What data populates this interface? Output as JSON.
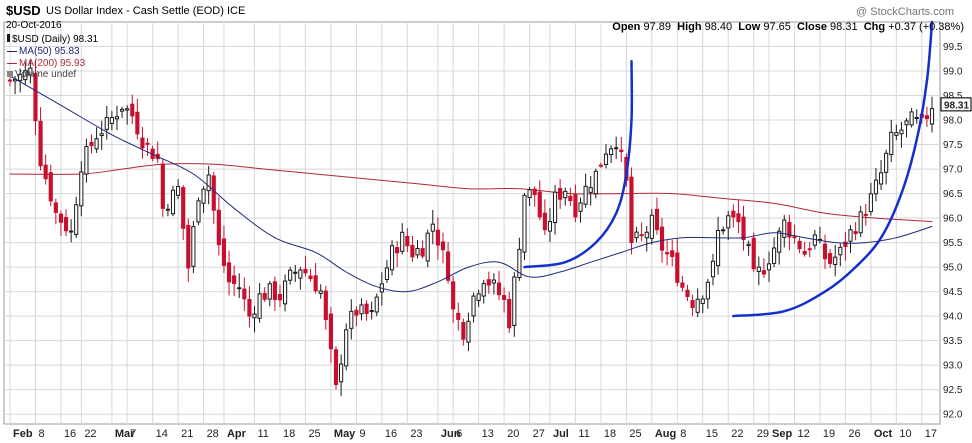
{
  "header": {
    "symbol": "$USD",
    "name": "US Dollar Index - Cash Settle (EOD)",
    "exchange": "ICE",
    "date": "20-Oct-2016",
    "watermark": "@ StockCharts.com",
    "open_label": "Open",
    "open_value": "97.89",
    "high_label": "High",
    "high_value": "98.40",
    "low_label": "Low",
    "low_value": "97.65",
    "close_label": "Close",
    "close_value": "98.31",
    "chg_label": "Chg",
    "chg_value": "+0.37 (+0.38%)"
  },
  "legend": {
    "price": "$USD (Daily) 98.31",
    "ma50": "MA(50) 95.83",
    "ma200": "MA(200) 95.93",
    "volume": "Volume undef"
  },
  "colors": {
    "up": "#1a1a1a",
    "down": "#c8102e",
    "ma50": "#1f2a7a",
    "ma200": "#b0283a",
    "annotation": "#1530c8",
    "grid": "#d8d8d8",
    "last_price_box": "#1a1a1a"
  },
  "chart_data": {
    "type": "candlestick",
    "title": "$USD US Dollar Index - Cash Settle (EOD) ICE",
    "ylim": [
      91.8,
      100.0
    ],
    "y_ticks": [
      "92.0",
      "92.5",
      "93.0",
      "93.5",
      "94.0",
      "94.5",
      "95.0",
      "95.5",
      "96.0",
      "96.5",
      "97.0",
      "97.5",
      "98.0",
      "98.5",
      "99.0",
      "99.5"
    ],
    "x_ticks": [
      {
        "i": 0,
        "label": "Feb",
        "major": true
      },
      {
        "i": 5,
        "label": "8",
        "major": false
      },
      {
        "i": 10,
        "label": "16",
        "major": false
      },
      {
        "i": 14,
        "label": "22",
        "major": false
      },
      {
        "i": 20,
        "label": "Mar",
        "major": true
      },
      {
        "i": 23,
        "label": "7",
        "major": false
      },
      {
        "i": 28,
        "label": "14",
        "major": false
      },
      {
        "i": 33,
        "label": "21",
        "major": false
      },
      {
        "i": 38,
        "label": "28",
        "major": false
      },
      {
        "i": 42,
        "label": "Apr",
        "major": true
      },
      {
        "i": 48,
        "label": "11",
        "major": false
      },
      {
        "i": 53,
        "label": "18",
        "major": false
      },
      {
        "i": 58,
        "label": "25",
        "major": false
      },
      {
        "i": 63,
        "label": "May",
        "major": true
      },
      {
        "i": 68,
        "label": "9",
        "major": false
      },
      {
        "i": 73,
        "label": "16",
        "major": false
      },
      {
        "i": 78,
        "label": "23",
        "major": false
      },
      {
        "i": 84,
        "label": "Jun",
        "major": true
      },
      {
        "i": 87,
        "label": "6",
        "major": false
      },
      {
        "i": 92,
        "label": "13",
        "major": false
      },
      {
        "i": 97,
        "label": "20",
        "major": false
      },
      {
        "i": 102,
        "label": "27",
        "major": false
      },
      {
        "i": 106,
        "label": "Jul",
        "major": true
      },
      {
        "i": 111,
        "label": "11",
        "major": false
      },
      {
        "i": 116,
        "label": "18",
        "major": false
      },
      {
        "i": 121,
        "label": "25",
        "major": false
      },
      {
        "i": 126,
        "label": "Aug",
        "major": true
      },
      {
        "i": 131,
        "label": "8",
        "major": false
      },
      {
        "i": 136,
        "label": "15",
        "major": false
      },
      {
        "i": 141,
        "label": "22",
        "major": false
      },
      {
        "i": 146,
        "label": "29",
        "major": false
      },
      {
        "i": 149,
        "label": "Sep",
        "major": true
      },
      {
        "i": 154,
        "label": "12",
        "major": false
      },
      {
        "i": 159,
        "label": "19",
        "major": false
      },
      {
        "i": 164,
        "label": "26",
        "major": false
      },
      {
        "i": 169,
        "label": "Oct",
        "major": true
      },
      {
        "i": 174,
        "label": "10",
        "major": false
      },
      {
        "i": 179,
        "label": "17",
        "major": false
      }
    ],
    "last_price": 98.31,
    "close_path": [
      [
        0,
        98.8
      ],
      [
        4,
        99.0
      ],
      [
        6,
        97.2
      ],
      [
        9,
        96.1
      ],
      [
        12,
        95.7
      ],
      [
        14,
        97.1
      ],
      [
        17,
        97.7
      ],
      [
        19,
        97.9
      ],
      [
        22,
        98.3
      ],
      [
        24,
        98.1
      ],
      [
        26,
        97.6
      ],
      [
        29,
        97.2
      ],
      [
        30,
        96.2
      ],
      [
        33,
        96.6
      ],
      [
        35,
        95.0
      ],
      [
        37,
        96.5
      ],
      [
        39,
        96.9
      ],
      [
        41,
        95.4
      ],
      [
        43,
        94.7
      ],
      [
        45,
        94.6
      ],
      [
        47,
        94.0
      ],
      [
        49,
        94.4
      ],
      [
        51,
        94.5
      ],
      [
        53,
        94.4
      ],
      [
        55,
        94.8
      ],
      [
        57,
        95.0
      ],
      [
        59,
        94.8
      ],
      [
        61,
        94.5
      ],
      [
        63,
        93.2
      ],
      [
        64,
        92.5
      ],
      [
        66,
        93.8
      ],
      [
        68,
        94.1
      ],
      [
        71,
        94.0
      ],
      [
        73,
        94.7
      ],
      [
        75,
        95.3
      ],
      [
        77,
        95.6
      ],
      [
        79,
        95.3
      ],
      [
        81,
        95.4
      ],
      [
        83,
        95.9
      ],
      [
        86,
        94.9
      ],
      [
        87,
        94.1
      ],
      [
        89,
        93.7
      ],
      [
        91,
        94.4
      ],
      [
        93,
        94.8
      ],
      [
        95,
        94.6
      ],
      [
        97,
        94.3
      ],
      [
        98,
        93.9
      ],
      [
        100,
        95.5
      ],
      [
        101,
        96.5
      ],
      [
        103,
        96.5
      ],
      [
        105,
        95.6
      ],
      [
        107,
        96.4
      ],
      [
        109,
        96.6
      ],
      [
        111,
        96.2
      ],
      [
        113,
        96.6
      ],
      [
        115,
        96.9
      ],
      [
        117,
        97.4
      ],
      [
        119,
        97.6
      ],
      [
        120,
        97.2
      ],
      [
        121,
        96.7
      ],
      [
        122,
        95.5
      ],
      [
        124,
        95.6
      ],
      [
        126,
        95.9
      ],
      [
        128,
        95.4
      ],
      [
        130,
        95.1
      ],
      [
        132,
        94.6
      ],
      [
        134,
        94.3
      ],
      [
        136,
        94.5
      ],
      [
        138,
        95.0
      ],
      [
        139,
        95.7
      ],
      [
        141,
        96.0
      ],
      [
        143,
        95.9
      ],
      [
        145,
        95.3
      ],
      [
        146,
        94.8
      ],
      [
        148,
        95.0
      ],
      [
        150,
        95.4
      ],
      [
        152,
        95.9
      ],
      [
        154,
        95.6
      ],
      [
        156,
        95.3
      ],
      [
        158,
        95.6
      ],
      [
        160,
        95.2
      ],
      [
        161,
        95.1
      ],
      [
        163,
        95.3
      ],
      [
        165,
        95.7
      ],
      [
        167,
        96.0
      ],
      [
        169,
        96.4
      ],
      [
        171,
        96.9
      ],
      [
        173,
        97.6
      ],
      [
        175,
        97.8
      ],
      [
        177,
        98.0
      ],
      [
        179,
        97.9
      ],
      [
        181,
        98.31
      ]
    ],
    "ma50_path": [
      [
        0,
        98.9
      ],
      [
        10,
        98.3
      ],
      [
        20,
        97.7
      ],
      [
        28,
        97.3
      ],
      [
        36,
        96.9
      ],
      [
        44,
        96.2
      ],
      [
        52,
        95.6
      ],
      [
        60,
        95.3
      ],
      [
        66,
        94.9
      ],
      [
        72,
        94.6
      ],
      [
        78,
        94.5
      ],
      [
        84,
        94.7
      ],
      [
        90,
        95.0
      ],
      [
        96,
        95.1
      ],
      [
        102,
        94.8
      ],
      [
        108,
        94.9
      ],
      [
        114,
        95.1
      ],
      [
        120,
        95.3
      ],
      [
        126,
        95.5
      ],
      [
        132,
        95.6
      ],
      [
        138,
        95.6
      ],
      [
        144,
        95.6
      ],
      [
        150,
        95.7
      ],
      [
        156,
        95.6
      ],
      [
        162,
        95.5
      ],
      [
        168,
        95.5
      ],
      [
        174,
        95.6
      ],
      [
        181,
        95.83
      ]
    ],
    "ma200_path": [
      [
        0,
        96.9
      ],
      [
        14,
        96.9
      ],
      [
        22,
        97.0
      ],
      [
        30,
        97.1
      ],
      [
        40,
        97.1
      ],
      [
        50,
        97.0
      ],
      [
        60,
        96.9
      ],
      [
        70,
        96.8
      ],
      [
        80,
        96.7
      ],
      [
        90,
        96.6
      ],
      [
        100,
        96.6
      ],
      [
        110,
        96.5
      ],
      [
        120,
        96.5
      ],
      [
        130,
        96.5
      ],
      [
        140,
        96.4
      ],
      [
        150,
        96.3
      ],
      [
        160,
        96.1
      ],
      [
        170,
        96.0
      ],
      [
        181,
        95.93
      ]
    ],
    "arc1": [
      [
        101,
        95.0
      ],
      [
        109,
        95.1
      ],
      [
        115,
        95.5
      ],
      [
        119,
        96.1
      ],
      [
        121,
        96.9
      ],
      [
        122,
        98.0
      ],
      [
        122,
        99.2
      ]
    ],
    "arc2": [
      [
        142,
        94.0
      ],
      [
        152,
        94.1
      ],
      [
        160,
        94.5
      ],
      [
        166,
        95.0
      ],
      [
        171,
        95.6
      ],
      [
        175,
        96.5
      ],
      [
        178,
        97.6
      ],
      [
        180,
        98.8
      ],
      [
        181,
        100.0
      ]
    ]
  }
}
